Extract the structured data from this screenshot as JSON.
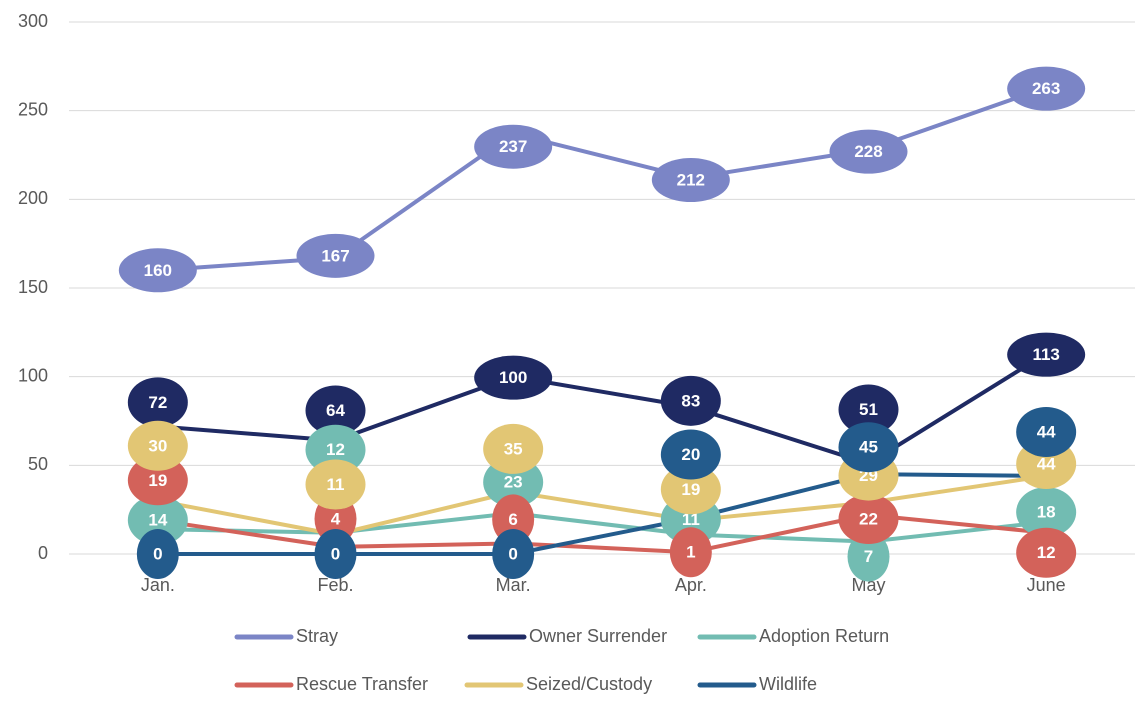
{
  "chart_data": {
    "type": "line",
    "categories": [
      "Jan.",
      "Feb.",
      "Mar.",
      "Apr.",
      "May",
      "June"
    ],
    "series": [
      {
        "name": "Stray",
        "color": "#7b85c6",
        "values": [
          160,
          167,
          237,
          212,
          228,
          263
        ]
      },
      {
        "name": "Owner Surrender",
        "color": "#1f2a63",
        "values": [
          72,
          64,
          100,
          83,
          51,
          113
        ]
      },
      {
        "name": "Adoption Return",
        "color": "#72bcb2",
        "values": [
          14,
          12,
          23,
          11,
          7,
          18
        ]
      },
      {
        "name": "Rescue Transfer",
        "color": "#d3625a",
        "values": [
          19,
          4,
          6,
          1,
          22,
          12
        ]
      },
      {
        "name": "Seized/Custody",
        "color": "#e2c674",
        "values": [
          30,
          11,
          35,
          19,
          29,
          44
        ]
      },
      {
        "name": "Wildlife",
        "color": "#235b8c",
        "values": [
          0,
          0,
          0,
          20,
          45,
          44
        ]
      }
    ],
    "ylim": [
      0,
      300
    ],
    "yticks": [
      0,
      50,
      100,
      150,
      200,
      250,
      300
    ],
    "grid": true,
    "legend": "bottom"
  }
}
